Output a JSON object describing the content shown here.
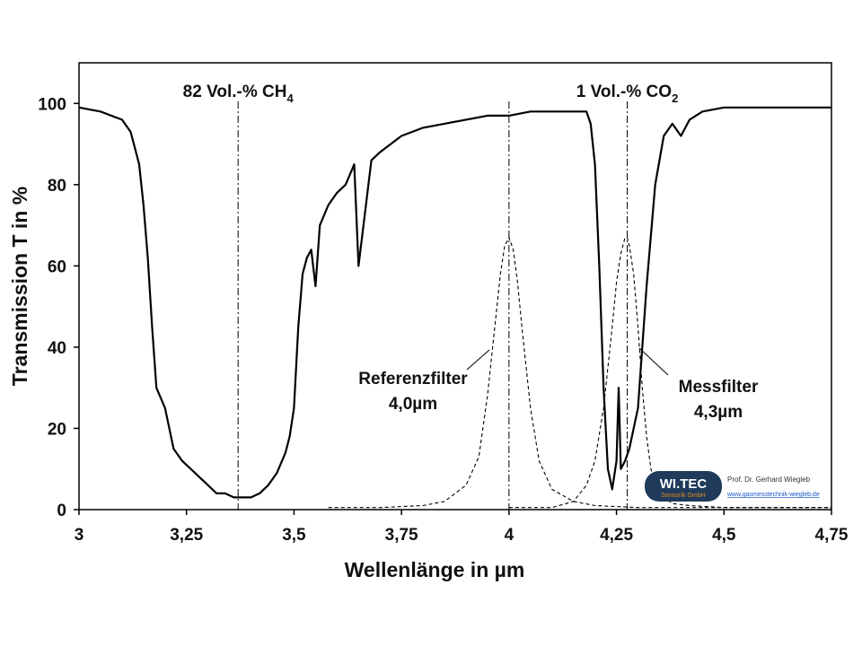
{
  "chart_data": {
    "type": "line",
    "xlabel": "Wellenlänge in µm",
    "ylabel": "Transmission T in %",
    "xlim": [
      3.0,
      4.75
    ],
    "ylim": [
      0,
      110
    ],
    "x_ticks": [
      3.0,
      3.25,
      3.5,
      3.75,
      4.0,
      4.25,
      4.5,
      4.75
    ],
    "x_tick_labels": [
      "3",
      "3,25",
      "3,5",
      "3,75",
      "4",
      "4,25",
      "4,5",
      "4,75"
    ],
    "y_ticks": [
      0,
      20,
      40,
      60,
      80,
      100
    ],
    "y_tick_labels": [
      "0",
      "20",
      "40",
      "60",
      "80",
      "100"
    ],
    "grid": false,
    "gas_labels": [
      {
        "text": "82 Vol.-% CH",
        "sub": "4",
        "x": 3.37
      },
      {
        "text": "1 Vol.-% CO",
        "sub": "2",
        "x": 4.275
      }
    ],
    "filter_labels": [
      {
        "line1": "Referenzfilter",
        "line2": "4,0µm",
        "x": 4.0
      },
      {
        "line1": "Messfilter",
        "line2": "4,3µm",
        "x": 4.275
      }
    ],
    "series": [
      {
        "style": "solid",
        "x": [
          3.0,
          3.05,
          3.1,
          3.12,
          3.14,
          3.15,
          3.16,
          3.17,
          3.18,
          3.2,
          3.22,
          3.24,
          3.26,
          3.28,
          3.3,
          3.32,
          3.34,
          3.36,
          3.38,
          3.4,
          3.42,
          3.44,
          3.46,
          3.48,
          3.49,
          3.5,
          3.51,
          3.52,
          3.53,
          3.54,
          3.55,
          3.56,
          3.58,
          3.6,
          3.62,
          3.64,
          3.65,
          3.68,
          3.7,
          3.75,
          3.8,
          3.85,
          3.9,
          3.95,
          4.0,
          4.05,
          4.1,
          4.15,
          4.18,
          4.19,
          4.2,
          4.21,
          4.22,
          4.23,
          4.24,
          4.25,
          4.255,
          4.26,
          4.27,
          4.28,
          4.3,
          4.32,
          4.34,
          4.36,
          4.38,
          4.4,
          4.42,
          4.45,
          4.5,
          4.6,
          4.75
        ],
        "y": [
          99,
          98,
          96,
          93,
          85,
          75,
          62,
          45,
          30,
          25,
          15,
          12,
          10,
          8,
          6,
          4,
          4,
          3,
          3,
          3,
          4,
          6,
          9,
          14,
          18,
          25,
          45,
          58,
          62,
          64,
          55,
          70,
          75,
          78,
          80,
          85,
          60,
          86,
          88,
          92,
          94,
          95,
          96,
          97,
          97,
          98,
          98,
          98,
          98,
          95,
          85,
          60,
          30,
          10,
          5,
          12,
          30,
          10,
          12,
          15,
          25,
          55,
          80,
          92,
          95,
          92,
          96,
          98,
          99,
          99,
          99
        ]
      },
      {
        "style": "dashed",
        "x": [
          3.58,
          3.7,
          3.8,
          3.85,
          3.9,
          3.93,
          3.95,
          3.97,
          3.98,
          3.99,
          4.0,
          4.01,
          4.02,
          4.03,
          4.05,
          4.07,
          4.1,
          4.15,
          4.2,
          4.3,
          4.5,
          4.75
        ],
        "y": [
          0.5,
          0.5,
          1,
          2,
          6,
          13,
          28,
          48,
          58,
          65,
          67,
          64,
          56,
          45,
          25,
          12,
          5,
          2,
          1,
          0.5,
          0.5,
          0.5
        ]
      },
      {
        "style": "dashed",
        "x": [
          4.0,
          4.1,
          4.15,
          4.18,
          4.2,
          4.22,
          4.24,
          4.25,
          4.26,
          4.27,
          4.275,
          4.28,
          4.29,
          4.3,
          4.31,
          4.32,
          4.33,
          4.35,
          4.38,
          4.42,
          4.5,
          4.75
        ],
        "y": [
          0.5,
          0.5,
          2,
          6,
          12,
          25,
          45,
          56,
          63,
          67,
          67,
          65,
          58,
          45,
          30,
          18,
          10,
          4,
          1.5,
          1,
          0.5,
          0.5
        ]
      }
    ]
  },
  "logo": {
    "wordmark": "WI.TEC",
    "tagline": "Sensorik GmbH",
    "author": "Prof. Dr. Gerhard Wiegleb",
    "url": "www.gasmesstechnik-wiegleb.de"
  },
  "colors": {
    "line": "#000000",
    "logo_bg": "#1f3a5a",
    "logo_accent": "#e08a20",
    "url": "#1a56c9"
  }
}
